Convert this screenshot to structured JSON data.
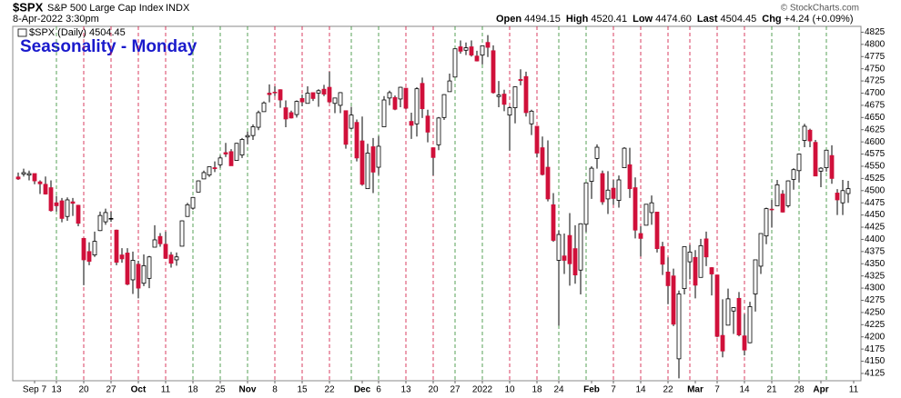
{
  "header": {
    "symbol": "$SPX",
    "name": "S&P 500 Large Cap Index",
    "exchange": "INDX",
    "timestamp": "8-Apr-2022 3:30pm",
    "copyright": "© StockCharts.com",
    "quote": [
      {
        "label": "Open",
        "value": "4494.15"
      },
      {
        "label": "High",
        "value": "4520.41"
      },
      {
        "label": "Low",
        "value": "4474.60"
      },
      {
        "label": "Last",
        "value": "4504.45"
      },
      {
        "label": "Chg",
        "value": "+4.24 (+0.09%)"
      }
    ]
  },
  "chart_data": {
    "type": "candlestick",
    "title": "Seasonality - Monday",
    "legend": "$SPX (Daily) 4504.45",
    "up_color": "#ffffff",
    "down_color": "#d0103a",
    "wick_color": "#000000",
    "categories": [
      "Sep 1",
      "Sep 2",
      "Sep 3",
      "Sep 7",
      "Sep 8",
      "Sep 9",
      "Sep 10",
      "Sep 13",
      "Sep 14",
      "Sep 15",
      "Sep 16",
      "Sep 17",
      "Sep 20",
      "Sep 21",
      "Sep 22",
      "Sep 23",
      "Sep 24",
      "Sep 27",
      "Sep 28",
      "Sep 29",
      "Sep 30",
      "Oct 1",
      "Oct 4",
      "Oct 5",
      "Oct 6",
      "Oct 7",
      "Oct 8",
      "Oct 11",
      "Oct 12",
      "Oct 13",
      "Oct 14",
      "Oct 15",
      "Oct 18",
      "Oct 19",
      "Oct 20",
      "Oct 21",
      "Oct 22",
      "Oct 25",
      "Oct 26",
      "Oct 27",
      "Oct 28",
      "Oct 29",
      "Nov 1",
      "Nov 2",
      "Nov 3",
      "Nov 4",
      "Nov 5",
      "Nov 8",
      "Nov 9",
      "Nov 10",
      "Nov 11",
      "Nov 12",
      "Nov 15",
      "Nov 16",
      "Nov 17",
      "Nov 18",
      "Nov 19",
      "Nov 22",
      "Nov 23",
      "Nov 24",
      "Nov 26",
      "Nov 29",
      "Nov 30",
      "Dec 1",
      "Dec 2",
      "Dec 3",
      "Dec 6",
      "Dec 7",
      "Dec 8",
      "Dec 9",
      "Dec 10",
      "Dec 13",
      "Dec 14",
      "Dec 15",
      "Dec 16",
      "Dec 17",
      "Dec 20",
      "Dec 21",
      "Dec 22",
      "Dec 23",
      "Dec 27",
      "Dec 28",
      "Dec 29",
      "Dec 30",
      "Dec 31",
      "Jan 3",
      "Jan 4",
      "Jan 5",
      "Jan 6",
      "Jan 7",
      "Jan 10",
      "Jan 11",
      "Jan 12",
      "Jan 13",
      "Jan 14",
      "Jan 18",
      "Jan 19",
      "Jan 20",
      "Jan 21",
      "Jan 24",
      "Jan 25",
      "Jan 26",
      "Jan 27",
      "Jan 28",
      "Jan 31",
      "Feb 1",
      "Feb 2",
      "Feb 3",
      "Feb 4",
      "Feb 7",
      "Feb 8",
      "Feb 9",
      "Feb 10",
      "Feb 11",
      "Feb 14",
      "Feb 15",
      "Feb 16",
      "Feb 17",
      "Feb 18",
      "Feb 22",
      "Feb 23",
      "Feb 24",
      "Feb 25",
      "Feb 28",
      "Mar 1",
      "Mar 2",
      "Mar 3",
      "Mar 4",
      "Mar 7",
      "Mar 8",
      "Mar 9",
      "Mar 10",
      "Mar 11",
      "Mar 14",
      "Mar 15",
      "Mar 16",
      "Mar 17",
      "Mar 18",
      "Mar 21",
      "Mar 22",
      "Mar 23",
      "Mar 24",
      "Mar 25",
      "Mar 28",
      "Mar 29",
      "Mar 30",
      "Mar 31",
      "Apr 1",
      "Apr 4",
      "Apr 5",
      "Apr 6",
      "Apr 7",
      "Apr 8",
      "Apr 11"
    ],
    "open": [
      4528,
      4534,
      4532,
      4535,
      4518,
      4513,
      4506,
      4475,
      4479,
      4447,
      4477,
      4470,
      4402,
      4375,
      4368,
      4418,
      4436,
      4443,
      4419,
      4368,
      4372,
      4317,
      4349,
      4310,
      4320,
      4384,
      4406,
      4390,
      4368,
      4358,
      4386,
      4447,
      4464,
      4497,
      4524,
      4532,
      4547,
      4553,
      4578,
      4580,
      4562,
      4573,
      4610,
      4613,
      4630,
      4662,
      4700,
      4702,
      4707,
      4670,
      4660,
      4656,
      4689,
      4679,
      4701,
      4700,
      4708,
      4712,
      4679,
      4675,
      4664,
      4628,
      4640,
      4602,
      4504,
      4590,
      4548,
      4631,
      4690,
      4691,
      4688,
      4710,
      4642,
      4637,
      4720,
      4653,
      4588,
      4594,
      4650,
      4703,
      4733,
      4795,
      4788,
      4795,
      4776,
      4778,
      4804,
      4787,
      4693,
      4698,
      4655,
      4670,
      4728,
      4734,
      4637,
      4632,
      4588,
      4548,
      4471,
      4357,
      4366,
      4408,
      4381,
      4337,
      4431,
      4519,
      4566,
      4535,
      4483,
      4505,
      4480,
      4547,
      4553,
      4506,
      4412,
      4429,
      4455,
      4456,
      4385,
      4333,
      4325,
      4155,
      4299,
      4354,
      4363,
      4322,
      4401,
      4342,
      4327,
      4203,
      4224,
      4253,
      4279,
      4202,
      4188,
      4288,
      4345,
      4407,
      4462,
      4469,
      4493,
      4469,
      4523,
      4541,
      4603,
      4624,
      4599,
      4540,
      4547,
      4572,
      4495,
      4475,
      4494,
      null
    ],
    "high": [
      4537,
      4545,
      4541,
      4535,
      4521,
      4529,
      4521,
      4489,
      4485,
      4486,
      4485,
      4471,
      4403,
      4394,
      4416,
      4457,
      4463,
      4457,
      4420,
      4382,
      4382,
      4375,
      4356,
      4369,
      4366,
      4429,
      4413,
      4416,
      4374,
      4373,
      4439,
      4475,
      4487,
      4521,
      4541,
      4549,
      4560,
      4572,
      4598,
      4585,
      4598,
      4608,
      4621,
      4636,
      4664,
      4683,
      4718,
      4714,
      4708,
      4685,
      4664,
      4685,
      4697,
      4714,
      4701,
      4708,
      4717,
      4744,
      4690,
      4702,
      4664,
      4672,
      4646,
      4652,
      4596,
      4608,
      4612,
      4694,
      4705,
      4695,
      4713,
      4711,
      4660,
      4712,
      4732,
      4666,
      4588,
      4651,
      4698,
      4740,
      4791,
      4808,
      4804,
      4808,
      4787,
      4797,
      4819,
      4798,
      4725,
      4707,
      4673,
      4714,
      4749,
      4744,
      4666,
      4632,
      4611,
      4603,
      4495,
      4418,
      4412,
      4454,
      4429,
      4433,
      4516,
      4550,
      4595,
      4541,
      4540,
      4522,
      4531,
      4589,
      4588,
      4527,
      4427,
      4472,
      4490,
      4456,
      4395,
      4363,
      4340,
      4295,
      4385,
      4389,
      4378,
      4401,
      4416,
      4343,
      4327,
      4277,
      4299,
      4261,
      4292,
      4247,
      4272,
      4358,
      4412,
      4465,
      4481,
      4522,
      4501,
      4521,
      4546,
      4575,
      4637,
      4627,
      4604,
      4548,
      4583,
      4593,
      4503,
      4522,
      4520,
      null
    ],
    "low": [
      4522,
      4529,
      4521,
      4513,
      4493,
      4492,
      4457,
      4457,
      4435,
      4438,
      4448,
      4427,
      4306,
      4347,
      4364,
      4417,
      4430,
      4436,
      4347,
      4352,
      4306,
      4288,
      4279,
      4304,
      4300,
      4384,
      4385,
      4360,
      4342,
      4346,
      4386,
      4447,
      4461,
      4497,
      4524,
      4528,
      4538,
      4547,
      4569,
      4551,
      4562,
      4567,
      4595,
      4604,
      4624,
      4662,
      4681,
      4694,
      4670,
      4630,
      4648,
      4650,
      4673,
      4679,
      4684,
      4672,
      4694,
      4680,
      4659,
      4659,
      4586,
      4626,
      4560,
      4510,
      4504,
      4495,
      4532,
      4631,
      4675,
      4665,
      4671,
      4667,
      4606,
      4611,
      4649,
      4599,
      4531,
      4583,
      4645,
      4703,
      4733,
      4781,
      4778,
      4775,
      4765,
      4759,
      4774,
      4699,
      4671,
      4663,
      4582,
      4638,
      4716,
      4652,
      4614,
      4568,
      4531,
      4478,
      4395,
      4223,
      4329,
      4305,
      4309,
      4287,
      4415,
      4483,
      4545,
      4471,
      4452,
      4471,
      4465,
      4547,
      4485,
      4402,
      4365,
      4429,
      4430,
      4373,
      4327,
      4267,
      4222,
      4115,
      4287,
      4318,
      4279,
      4322,
      4345,
      4285,
      4199,
      4158,
      4224,
      4206,
      4201,
      4162,
      4187,
      4252,
      4329,
      4390,
      4424,
      4469,
      4455,
      4465,
      4502,
      4517,
      4589,
      4589,
      4530,
      4507,
      4539,
      4514,
      4450,
      4450,
      4475,
      null
    ],
    "close": [
      4524,
      4537,
      4535,
      4520,
      4514,
      4493,
      4459,
      4469,
      4443,
      4481,
      4474,
      4433,
      4358,
      4355,
      4396,
      4449,
      4455,
      4443,
      4353,
      4360,
      4308,
      4357,
      4300,
      4346,
      4364,
      4399,
      4391,
      4361,
      4351,
      4364,
      4438,
      4471,
      4486,
      4520,
      4537,
      4549,
      4545,
      4567,
      4575,
      4551,
      4597,
      4605,
      4613,
      4631,
      4660,
      4680,
      4697,
      4701,
      4686,
      4647,
      4649,
      4683,
      4682,
      4700,
      4689,
      4705,
      4698,
      4682,
      4690,
      4701,
      4595,
      4655,
      4567,
      4513,
      4577,
      4538,
      4591,
      4686,
      4701,
      4667,
      4712,
      4669,
      4634,
      4709,
      4668,
      4620,
      4568,
      4649,
      4697,
      4725,
      4791,
      4786,
      4793,
      4778,
      4766,
      4797,
      4794,
      4701,
      4696,
      4677,
      4670,
      4713,
      4726,
      4660,
      4663,
      4577,
      4533,
      4483,
      4398,
      4410,
      4357,
      4350,
      4327,
      4432,
      4516,
      4546,
      4589,
      4477,
      4501,
      4484,
      4522,
      4587,
      4504,
      4419,
      4402,
      4472,
      4475,
      4381,
      4349,
      4305,
      4226,
      4288,
      4385,
      4374,
      4306,
      4387,
      4364,
      4329,
      4201,
      4171,
      4278,
      4260,
      4204,
      4173,
      4262,
      4358,
      4412,
      4463,
      4461,
      4512,
      4456,
      4520,
      4543,
      4575,
      4632,
      4602,
      4530,
      4546,
      4583,
      4525,
      4481,
      4500,
      4504,
      null
    ],
    "ylim": [
      4110,
      4837
    ],
    "yticks": [
      4125,
      4150,
      4175,
      4200,
      4225,
      4250,
      4275,
      4300,
      4325,
      4350,
      4375,
      4400,
      4425,
      4450,
      4475,
      4500,
      4525,
      4550,
      4575,
      4600,
      4625,
      4650,
      4675,
      4700,
      4725,
      4750,
      4775,
      4800,
      4825
    ],
    "xticks": [
      "Sep 7",
      {
        "value": "Sep 13",
        "label": "13"
      },
      {
        "value": "Sep 20",
        "label": "20"
      },
      {
        "value": "Sep 27",
        "label": "27"
      },
      {
        "value": "Oct 4",
        "label": "Oct"
      },
      {
        "value": "Oct 11",
        "label": "11"
      },
      {
        "value": "Oct 18",
        "label": "18"
      },
      {
        "value": "Oct 25",
        "label": "25"
      },
      {
        "value": "Nov 1",
        "label": "Nov"
      },
      {
        "value": "Nov 8",
        "label": "8"
      },
      {
        "value": "Nov 15",
        "label": "15"
      },
      {
        "value": "Nov 22",
        "label": "22"
      },
      {
        "value": "Dec 1",
        "label": "Dec"
      },
      {
        "value": "Dec 6",
        "label": "6"
      },
      {
        "value": "Dec 13",
        "label": "13"
      },
      {
        "value": "Dec 20",
        "label": "20"
      },
      {
        "value": "Dec 27",
        "label": "27"
      },
      {
        "value": "Jan 3",
        "label": "2022"
      },
      {
        "value": "Jan 10",
        "label": "10"
      },
      {
        "value": "Jan 18",
        "label": "18"
      },
      {
        "value": "Jan 24",
        "label": "24"
      },
      {
        "value": "Feb 1",
        "label": "Feb"
      },
      {
        "value": "Feb 7",
        "label": "7"
      },
      {
        "value": "Feb 14",
        "label": "14"
      },
      {
        "value": "Feb 22",
        "label": "22"
      },
      {
        "value": "Mar 1",
        "label": "Mar"
      },
      {
        "value": "Mar 7",
        "label": "7"
      },
      {
        "value": "Mar 14",
        "label": "14"
      },
      {
        "value": "Mar 21",
        "label": "21"
      },
      {
        "value": "Mar 28",
        "label": "28"
      },
      {
        "value": "Apr 1",
        "label": "Apr"
      },
      {
        "value": "Apr 11",
        "label": "11"
      }
    ],
    "monday_lines": {
      "dates": [
        "Sep 13",
        "Sep 20",
        "Sep 27",
        "Oct 4",
        "Oct 11",
        "Oct 18",
        "Oct 25",
        "Nov 1",
        "Nov 8",
        "Nov 15",
        "Nov 22",
        "Nov 29",
        "Dec 6",
        "Dec 13",
        "Dec 20",
        "Dec 27",
        "Jan 3",
        "Jan 10",
        "Jan 18",
        "Jan 24",
        "Jan 31",
        "Feb 7",
        "Feb 14",
        "Feb 22",
        "Feb 28",
        "Mar 7",
        "Mar 14",
        "Mar 21",
        "Mar 28",
        "Apr 4"
      ],
      "colors": [
        "#2e8b2e",
        "#d0103a",
        "#d0103a",
        "#d0103a",
        "#d0103a",
        "#2e8b2e",
        "#2e8b2e",
        "#2e8b2e",
        "#d0103a",
        "#d0103a",
        "#d0103a",
        "#2e8b2e",
        "#2e8b2e",
        "#d0103a",
        "#d0103a",
        "#2e8b2e",
        "#2e8b2e",
        "#d0103a",
        "#d0103a",
        "#2e8b2e",
        "#2e8b2e",
        "#d0103a",
        "#d0103a",
        "#d0103a",
        "#d0103a",
        "#d0103a",
        "#d0103a",
        "#2e8b2e",
        "#2e8b2e",
        "#2e8b2e"
      ]
    },
    "grid": false
  }
}
